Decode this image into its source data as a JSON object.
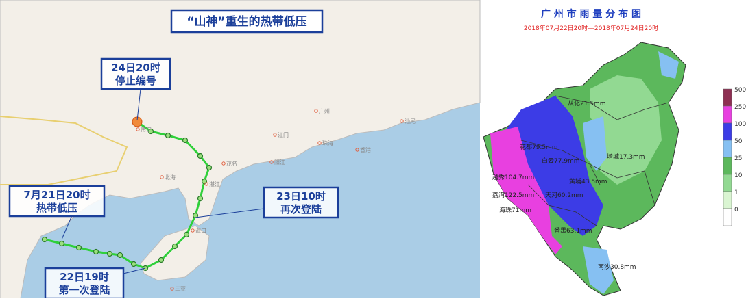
{
  "left_map": {
    "title": "“山神”重生的热带低压",
    "callouts": [
      {
        "line1": "24日20时",
        "line2": "停止编号"
      },
      {
        "line1": "7月21日20时",
        "line2": "热带低压"
      },
      {
        "line1": "23日10时",
        "line2": "再次登陆"
      },
      {
        "line1": "22日19时",
        "line2": "第一次登陆"
      }
    ],
    "cities": [
      "广州",
      "江门",
      "珠海",
      "茂名",
      "湛江",
      "北海",
      "南宁",
      "海口",
      "三亚",
      "汕尾",
      "阳江",
      "香港"
    ]
  },
  "right_map": {
    "title": "广 州 市 雨 量 分 布 图",
    "subtitle": "2018年07月22日20时---2018年07月24日20时",
    "districts": [
      "从化21.5mm",
      "花都79.5mm",
      "白云77.9mm",
      "增城17.3mm",
      "黄埔43.5mm",
      "越秀104.7mm",
      "天河60.2mm",
      "荔湾122.5mm",
      "海珠71mm",
      "番禺63.1mm",
      "南沙30.8mm"
    ],
    "legend": [
      {
        "label": "500",
        "color": "#8e2f52"
      },
      {
        "label": "250",
        "color": "#e840e0"
      },
      {
        "label": "100",
        "color": "#3c3ce6"
      },
      {
        "label": "50",
        "color": "#86c0f2"
      },
      {
        "label": "25",
        "color": "#5cb85c"
      },
      {
        "label": "10",
        "color": "#92d992"
      },
      {
        "label": "1",
        "color": "#daf5d2"
      },
      {
        "label": "0",
        "color": "#ffffff"
      }
    ]
  }
}
